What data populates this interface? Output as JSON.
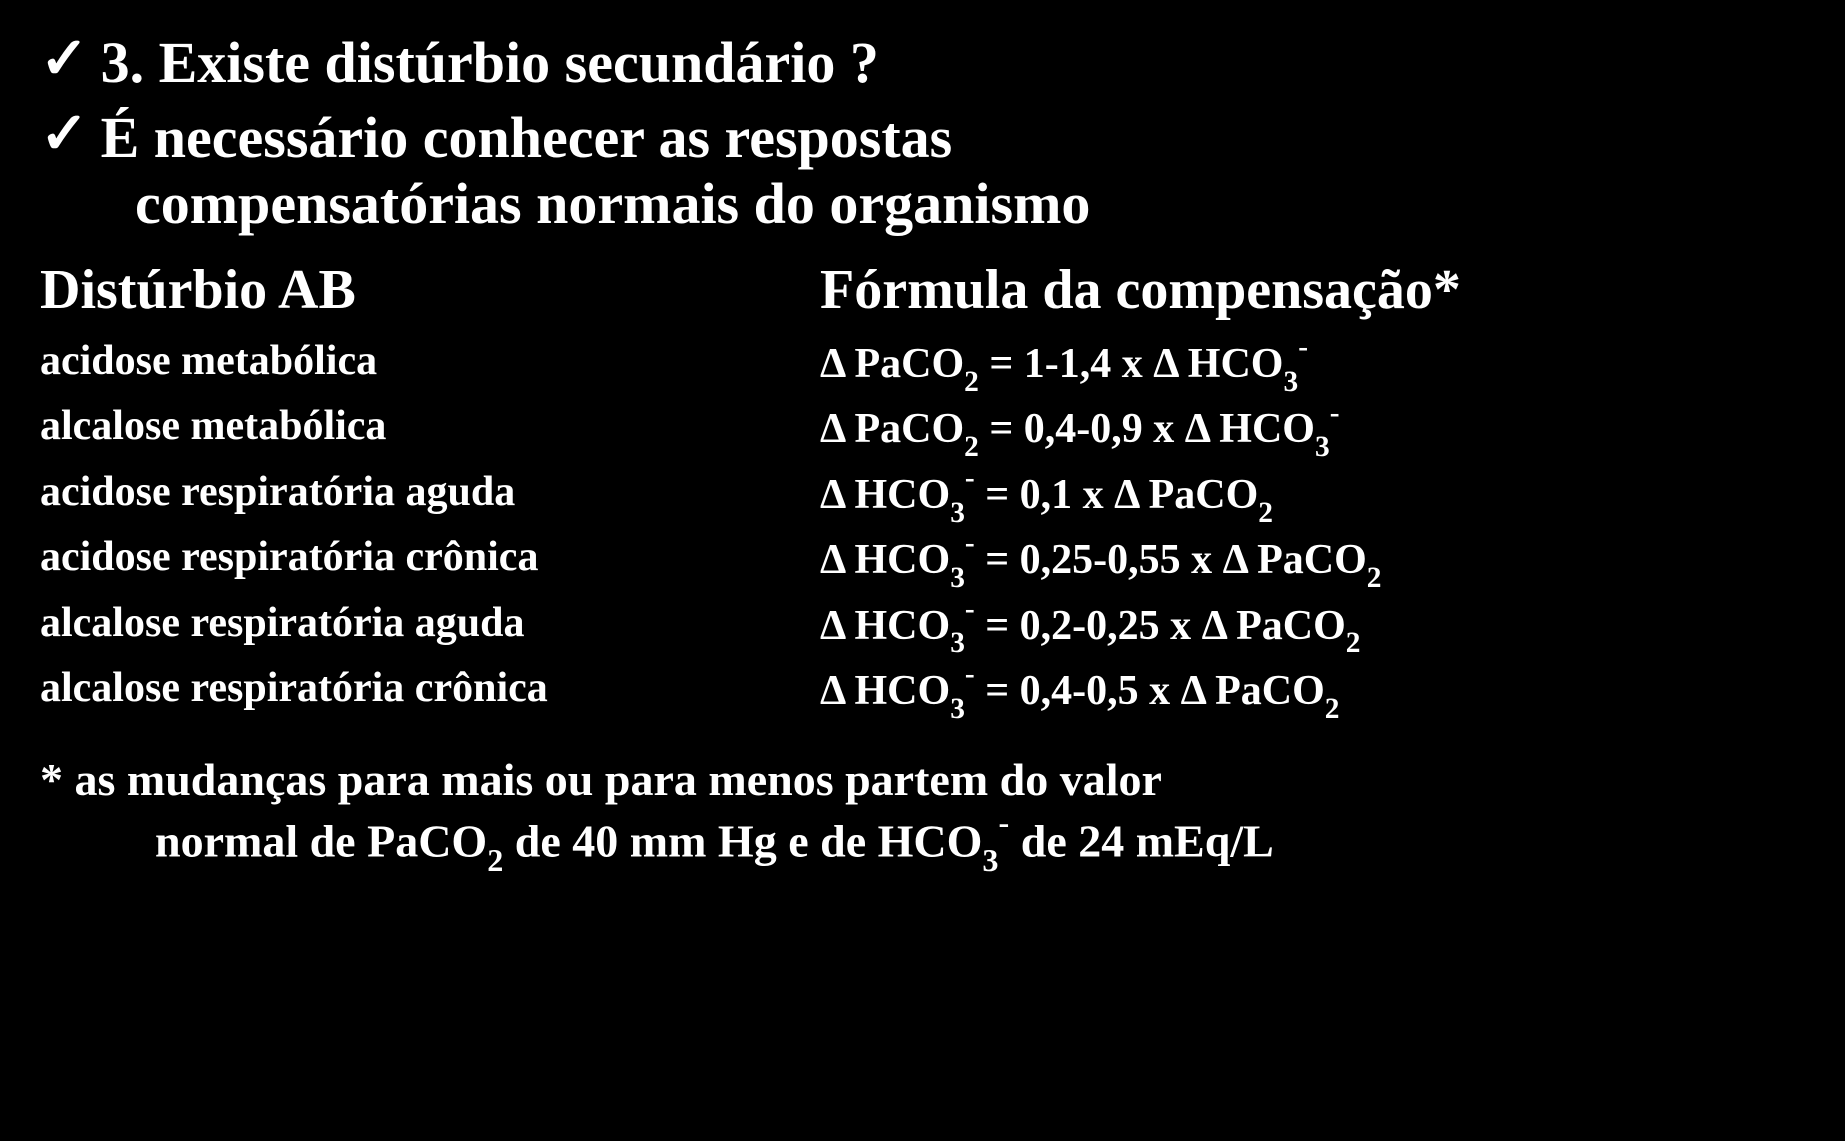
{
  "bullets": {
    "b1": "3. Existe distúrbio secundário ?",
    "b2_line1": "É necessário conhecer as respostas",
    "b2_line2": "compensatórias normais do organismo"
  },
  "headers": {
    "disturbio": "Distúrbio AB",
    "formula": "Fórmula da compensação*"
  },
  "rows": [
    {
      "disturbio": "acidose metabólica",
      "formula_prefix": "Δ PaCO",
      "formula_sub1": "2",
      "formula_mid": " = 1-1,4 x Δ HCO",
      "formula_sub2": "3",
      "formula_sup": "-",
      "formula_suffix": ""
    },
    {
      "disturbio": "alcalose metabólica",
      "formula_prefix": "Δ PaCO",
      "formula_sub1": "2",
      "formula_mid": " = 0,4-0,9 x Δ HCO",
      "formula_sub2": "3",
      "formula_sup": "-",
      "formula_suffix": ""
    },
    {
      "disturbio": "acidose respiratória aguda",
      "formula_prefix": "Δ HCO",
      "formula_sub1": "3",
      "formula_sup1": "-",
      "formula_mid": " = 0,1 x Δ PaCO",
      "formula_sub2": "2",
      "formula_sup": "",
      "formula_suffix": ""
    },
    {
      "disturbio": "acidose respiratória crônica",
      "formula_prefix": "Δ HCO",
      "formula_sub1": "3",
      "formula_sup1": "-",
      "formula_mid": " = 0,25-0,55 x Δ PaCO",
      "formula_sub2": "2",
      "formula_sup": "",
      "formula_suffix": ""
    },
    {
      "disturbio": "alcalose respiratória aguda",
      "formula_prefix": "Δ HCO",
      "formula_sub1": "3",
      "formula_sup1": "-",
      "formula_mid": " = 0,2-0,25 x Δ PaCO",
      "formula_sub2": "2",
      "formula_sup": "",
      "formula_suffix": ""
    },
    {
      "disturbio": "alcalose respiratória crônica",
      "formula_prefix": "Δ HCO",
      "formula_sub1": "3",
      "formula_sup1": "-",
      "formula_mid": " = 0,4-0,5 x Δ PaCO",
      "formula_sub2": "2",
      "formula_sup": "",
      "formula_suffix": ""
    }
  ],
  "footnote": {
    "line1": "* as mudanças para mais ou para menos partem do valor",
    "line2_prefix": "normal de PaCO",
    "line2_sub1": "2",
    "line2_mid": " de 40 mm Hg e de HCO",
    "line2_sub2": "3",
    "line2_sup": "-",
    "line2_suffix": " de 24 mEq/L"
  },
  "checkmark": "✓"
}
